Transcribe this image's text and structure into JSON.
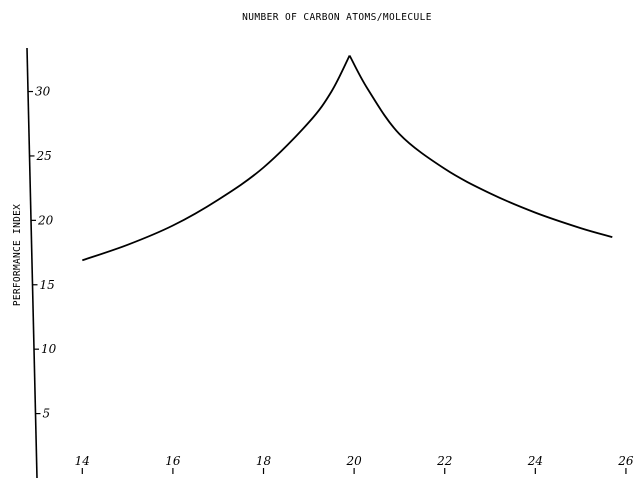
{
  "chart_data": {
    "type": "line",
    "title": "NUMBER OF CARBON ATOMS/MOLECULE",
    "xlabel": "",
    "ylabel": "PERFORMANCE INDEX",
    "xlim": [
      13.0,
      26.2
    ],
    "ylim": [
      0,
      34
    ],
    "xticks": [
      14,
      16,
      18,
      20,
      22,
      24,
      26
    ],
    "xtick_labels": [
      "14",
      "16",
      "18",
      "20",
      "22",
      "24",
      "26"
    ],
    "yticks": [
      5,
      10,
      15,
      20,
      25,
      30
    ],
    "ytick_labels": [
      "5",
      "10",
      "15",
      "20",
      "25",
      "30"
    ],
    "grid": false,
    "series": [
      {
        "name": "",
        "color": "#000000",
        "x": [
          14.0,
          15.0,
          16.0,
          17.0,
          18.0,
          19.0,
          19.5,
          19.9,
          20.3,
          21.0,
          22.0,
          23.0,
          24.0,
          25.0,
          25.7
        ],
        "y": [
          16.9,
          18.1,
          19.6,
          21.6,
          24.1,
          27.6,
          30.0,
          32.8,
          30.2,
          26.7,
          24.0,
          22.1,
          20.6,
          19.4,
          18.7
        ]
      }
    ]
  }
}
